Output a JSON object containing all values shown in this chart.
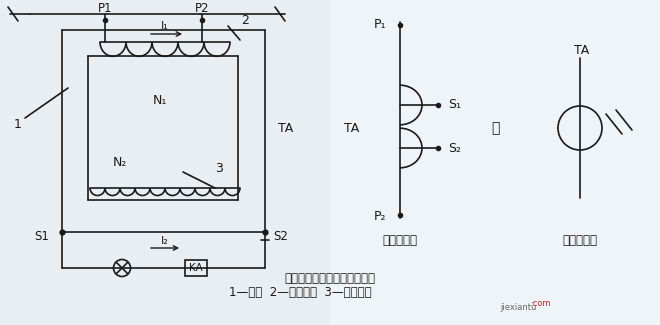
{
  "bg_color": "#dce8f0",
  "left_bg": "#f0f0f0",
  "right_bg": "#f0f8ff",
  "title_text": "电流互感器的基本结构和结线",
  "subtitle_text": "1—鐵心  2—一次绕组  3—二次绕组",
  "watermark": "jiexiantu",
  "fig_width": 6.6,
  "fig_height": 3.25,
  "dpi": 100
}
